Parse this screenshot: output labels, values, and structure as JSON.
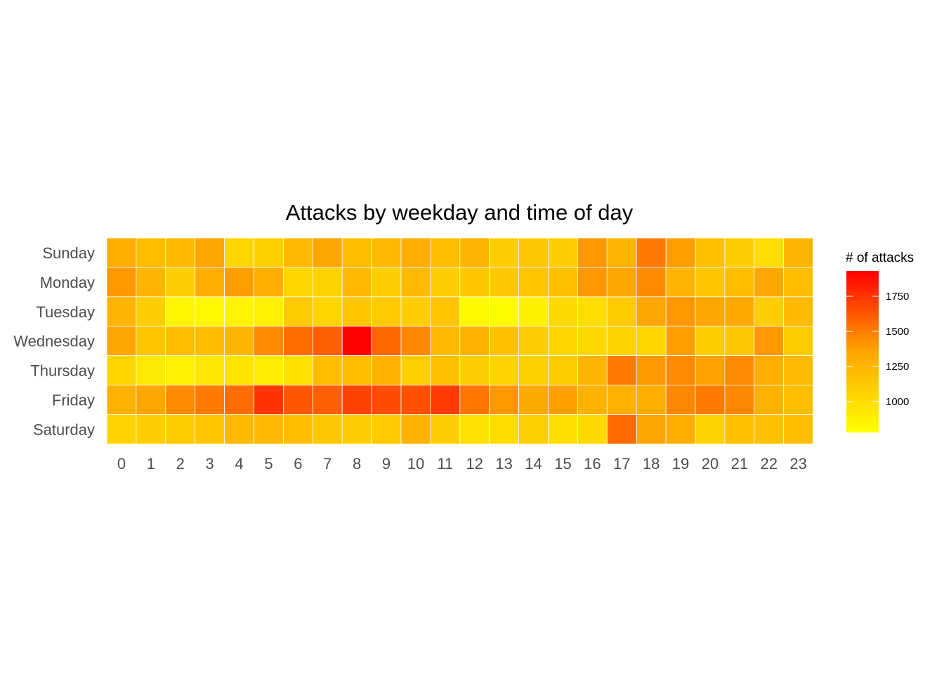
{
  "chart_data": {
    "type": "heatmap",
    "title": "Attacks by weekday and time of day",
    "xlabel": "",
    "ylabel": "",
    "x_categories": [
      "0",
      "1",
      "2",
      "3",
      "4",
      "5",
      "6",
      "7",
      "8",
      "9",
      "10",
      "11",
      "12",
      "13",
      "14",
      "15",
      "16",
      "17",
      "18",
      "19",
      "20",
      "21",
      "22",
      "23"
    ],
    "y_categories": [
      "Sunday",
      "Monday",
      "Tuesday",
      "Wednesday",
      "Thursday",
      "Friday",
      "Saturday"
    ],
    "values": [
      [
        1300,
        1200,
        1230,
        1350,
        1050,
        1080,
        1230,
        1350,
        1200,
        1230,
        1300,
        1200,
        1260,
        1100,
        1130,
        1100,
        1400,
        1250,
        1500,
        1380,
        1180,
        1100,
        1000,
        1250
      ],
      [
        1400,
        1250,
        1100,
        1300,
        1380,
        1300,
        1050,
        1060,
        1220,
        1100,
        1230,
        1100,
        1150,
        1130,
        1150,
        1180,
        1400,
        1350,
        1450,
        1250,
        1150,
        1200,
        1350,
        1200
      ],
      [
        1250,
        1100,
        850,
        830,
        850,
        880,
        1120,
        1050,
        1150,
        1120,
        1100,
        1150,
        820,
        800,
        870,
        1030,
        1010,
        1120,
        1350,
        1400,
        1340,
        1330,
        1100,
        1230
      ],
      [
        1350,
        1150,
        1200,
        1200,
        1250,
        1450,
        1550,
        1600,
        1920,
        1570,
        1460,
        1220,
        1280,
        1170,
        1100,
        1050,
        1030,
        1060,
        1050,
        1380,
        1110,
        1130,
        1400,
        1120
      ],
      [
        1050,
        920,
        880,
        930,
        950,
        900,
        970,
        1200,
        1200,
        1270,
        1080,
        1170,
        1100,
        1070,
        1080,
        1110,
        1250,
        1500,
        1400,
        1450,
        1370,
        1450,
        1300,
        1230
      ],
      [
        1280,
        1350,
        1450,
        1500,
        1550,
        1750,
        1630,
        1600,
        1700,
        1660,
        1650,
        1730,
        1520,
        1400,
        1320,
        1380,
        1280,
        1280,
        1300,
        1460,
        1500,
        1460,
        1280,
        1190
      ],
      [
        1070,
        1100,
        1120,
        1150,
        1230,
        1230,
        1200,
        1140,
        1100,
        1120,
        1270,
        1100,
        980,
        1010,
        1090,
        1000,
        1020,
        1560,
        1350,
        1300,
        1060,
        1180,
        1180,
        1200
      ]
    ],
    "color_scale": {
      "title": "# of attacks",
      "min": 780,
      "max": 1930,
      "ticks": [
        1000,
        1250,
        1500,
        1750
      ],
      "tick_labels": [
        "1000",
        "1250",
        "1500",
        "1750"
      ],
      "low_color": "#ffff00",
      "high_color": "#ff0000"
    },
    "grid": false,
    "legend_position": "right"
  }
}
